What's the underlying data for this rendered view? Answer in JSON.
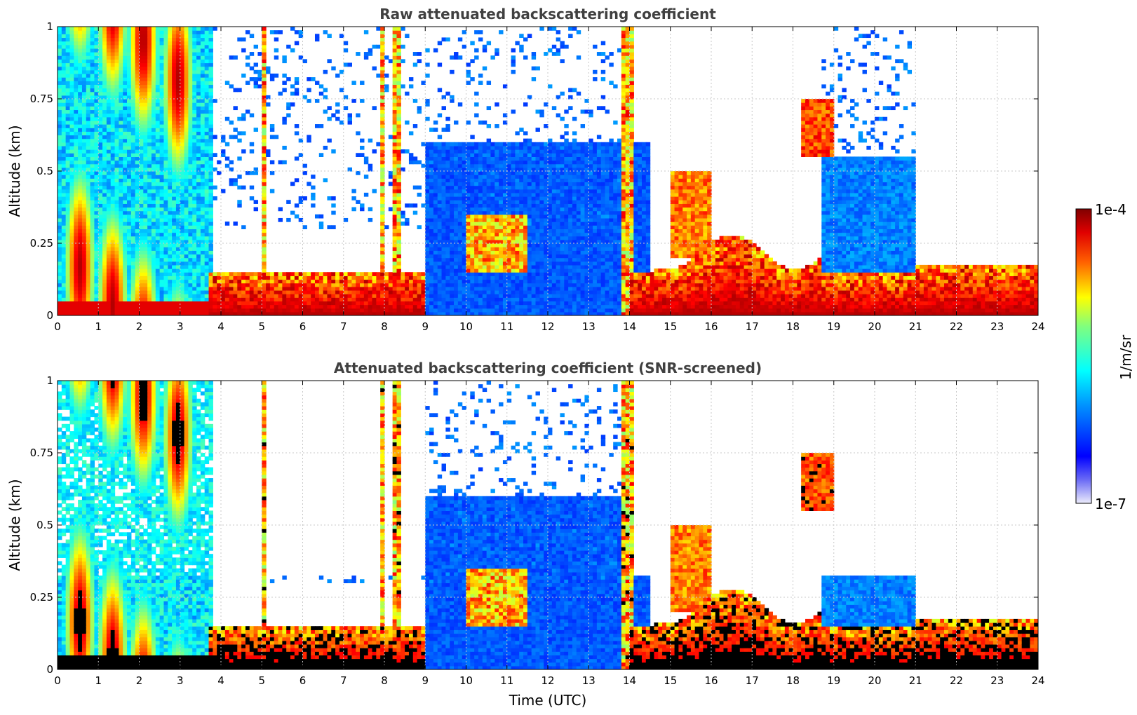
{
  "chart_data": [
    {
      "type": "heatmap",
      "title": "Raw attenuated backscattering coefficient",
      "xlabel": "",
      "ylabel": "Altitude (km)",
      "xlim": [
        0,
        24
      ],
      "ylim": [
        0,
        1
      ],
      "x_ticks": [
        "0",
        "1",
        "2",
        "3",
        "4",
        "5",
        "6",
        "7",
        "8",
        "9",
        "10",
        "11",
        "12",
        "13",
        "14",
        "15",
        "16",
        "17",
        "18",
        "19",
        "20",
        "21",
        "22",
        "23",
        "24"
      ],
      "y_ticks": [
        "0",
        "0.25",
        "0.5",
        "0.75",
        "1"
      ],
      "grid": true,
      "features": [
        {
          "t0": 0,
          "t1": 3.7,
          "a0": 0.0,
          "a1": 1.0,
          "level": "high",
          "desc": "dense early layers"
        },
        {
          "t0": 3.7,
          "t1": 9.0,
          "a0": 0.0,
          "a1": 0.15,
          "level": "high"
        },
        {
          "t0": 9.0,
          "t1": 14.0,
          "a0": 0.0,
          "a1": 0.6,
          "level": "low"
        },
        {
          "t0": 14.7,
          "t1": 18.7,
          "a0": 0.05,
          "a1": 0.3,
          "level": "high"
        },
        {
          "t0": 21.0,
          "t1": 24.0,
          "a0": 0.05,
          "a1": 0.18,
          "level": "high"
        }
      ]
    },
    {
      "type": "heatmap",
      "title": "Attenuated backscattering coefficient (SNR-screened)",
      "xlabel": "Time (UTC)",
      "ylabel": "Altitude (km)",
      "xlim": [
        0,
        24
      ],
      "ylim": [
        0,
        1
      ],
      "x_ticks": [
        "0",
        "1",
        "2",
        "3",
        "4",
        "5",
        "6",
        "7",
        "8",
        "9",
        "10",
        "11",
        "12",
        "13",
        "14",
        "15",
        "16",
        "17",
        "18",
        "19",
        "20",
        "21",
        "22",
        "23",
        "24"
      ],
      "y_ticks": [
        "0",
        "0.25",
        "0.5",
        "0.75",
        "1"
      ],
      "grid": true
    }
  ],
  "colorbar": {
    "max_label": "1e-4",
    "min_label": "1e-7",
    "unit_label": "1/m/sr",
    "colormap": "jet"
  }
}
